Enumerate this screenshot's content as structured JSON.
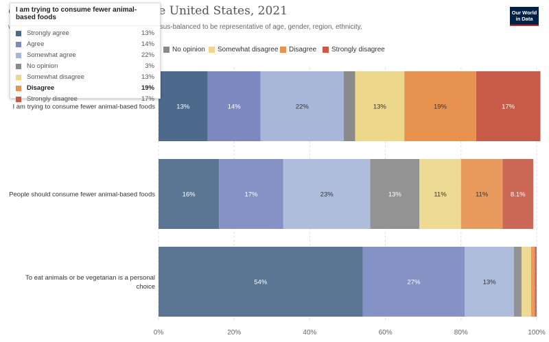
{
  "header": {
    "title": "ces and meat-eating in the United States, 2021",
    "subtitle": "with around 1,500 adults in the United States, census-balanced to be representative of age, gender, region, ethnicity,",
    "logo_line1": "Our World",
    "logo_line2": "in Data"
  },
  "colors": {
    "strongly_agree": "#4c6a8b",
    "agree": "#7b89c0",
    "somewhat_agree": "#a8b7d9",
    "no_opinion": "#8a8a8a",
    "somewhat_disagree": "#ecd78a",
    "disagree": "#e7934f",
    "strongly_disagree": "#c85b48"
  },
  "legend": {
    "items": [
      {
        "label": "No opinion",
        "color": "#8a8a8a"
      },
      {
        "label": "Somewhat disagree",
        "color": "#ecd78a"
      },
      {
        "label": "Disagree",
        "color": "#e7934f"
      },
      {
        "label": "Strongly disagree",
        "color": "#c85b48"
      }
    ]
  },
  "tooltip": {
    "title": "I am trying to consume fewer animal-based foods",
    "rows": [
      {
        "label": "Strongly agree",
        "value": "13%",
        "color": "#4c6a8b"
      },
      {
        "label": "Agree",
        "value": "14%",
        "color": "#7b89c0"
      },
      {
        "label": "Somewhat agree",
        "value": "22%",
        "color": "#a8b7d9"
      },
      {
        "label": "No opinion",
        "value": "3%",
        "color": "#8a8a8a"
      },
      {
        "label": "Somewhat disagree",
        "value": "13%",
        "color": "#ecd78a"
      },
      {
        "label": "Disagree",
        "value": "19%",
        "color": "#e7934f"
      },
      {
        "label": "Strongly disagree",
        "value": "17%",
        "color": "#c85b48"
      }
    ],
    "highlighted": "Disagree"
  },
  "chart_data": {
    "type": "bar",
    "orientation": "horizontal-stacked",
    "categories": [
      "I am trying to consume fewer animal-based foods",
      "People should consume fewer animal-based foods",
      "To eat animals or be vegetarian is a personal choice"
    ],
    "series": [
      {
        "name": "Strongly agree",
        "values": [
          13,
          16,
          54
        ],
        "labels": [
          "13%",
          "16%",
          "54%"
        ]
      },
      {
        "name": "Agree",
        "values": [
          14,
          17,
          27
        ],
        "labels": [
          "14%",
          "17%",
          "27%"
        ]
      },
      {
        "name": "Somewhat agree",
        "values": [
          22,
          23,
          13
        ],
        "labels": [
          "22%",
          "23%",
          "13%"
        ]
      },
      {
        "name": "No opinion",
        "values": [
          3,
          13,
          2
        ],
        "labels": [
          "",
          "13%",
          ""
        ]
      },
      {
        "name": "Somewhat disagree",
        "values": [
          13,
          11,
          2.5
        ],
        "labels": [
          "13%",
          "11%",
          ""
        ]
      },
      {
        "name": "Disagree",
        "values": [
          19,
          11,
          1
        ],
        "labels": [
          "19%",
          "11%",
          ""
        ]
      },
      {
        "name": "Strongly disagree",
        "values": [
          17,
          8.1,
          0.5
        ],
        "labels": [
          "17%",
          "8.1%",
          ""
        ]
      }
    ],
    "xlim": [
      0,
      100
    ],
    "xticks": [
      0,
      20,
      40,
      60,
      80,
      100
    ],
    "xtick_labels": [
      "0%",
      "20%",
      "40%",
      "60%",
      "80%",
      "100%"
    ],
    "grid": true,
    "legend_position": "top"
  }
}
